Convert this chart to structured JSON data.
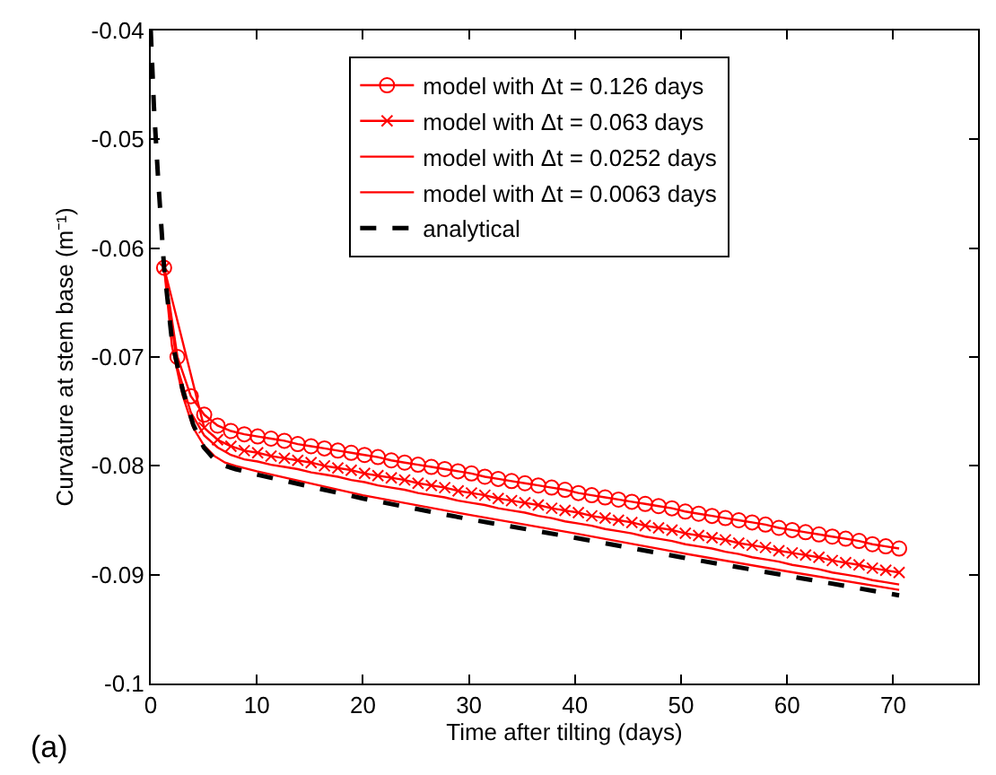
{
  "chart_data": {
    "type": "line",
    "xlabel": "Time after tilting (days)",
    "ylabel": "Curvature at stem base (m⁻¹)",
    "annotations": [
      "(a)"
    ],
    "x": [
      1.26,
      2.52,
      3.78,
      5.04,
      6.3,
      7.56,
      8.82,
      10.08,
      11.34,
      12.6,
      13.86,
      15.12,
      16.38,
      17.64,
      18.9,
      20.16,
      21.42,
      22.68,
      23.94,
      25.2,
      26.46,
      27.72,
      28.98,
      30.24,
      31.5,
      32.76,
      34.02,
      35.28,
      36.54,
      37.8,
      39.06,
      40.32,
      41.58,
      42.84,
      44.1,
      45.36,
      46.62,
      47.88,
      49.14,
      50.4,
      51.66,
      52.92,
      54.18,
      55.44,
      56.7,
      57.96,
      59.22,
      60.48,
      61.74,
      63,
      64.26,
      65.52,
      66.78,
      68.04,
      69.3,
      70.56
    ],
    "series": [
      {
        "name": "model with Δt = 0.126 days",
        "color": "#ff0000",
        "marker": "circle",
        "line_style": "solid",
        "values": [
          -0.0618,
          -0.07,
          -0.0736,
          -0.0753,
          -0.0763,
          -0.0768,
          -0.0771,
          -0.0773,
          -0.0775,
          -0.0777,
          -0.078,
          -0.0782,
          -0.0784,
          -0.0786,
          -0.0788,
          -0.079,
          -0.0792,
          -0.0795,
          -0.0797,
          -0.0799,
          -0.0801,
          -0.0803,
          -0.0805,
          -0.0807,
          -0.081,
          -0.0812,
          -0.0814,
          -0.0816,
          -0.0818,
          -0.082,
          -0.0822,
          -0.0825,
          -0.0827,
          -0.0829,
          -0.0831,
          -0.0833,
          -0.0835,
          -0.0837,
          -0.0839,
          -0.0842,
          -0.0844,
          -0.0846,
          -0.0848,
          -0.085,
          -0.0852,
          -0.0854,
          -0.0857,
          -0.0859,
          -0.0861,
          -0.0863,
          -0.0865,
          -0.0867,
          -0.0869,
          -0.0872,
          -0.0874,
          -0.0876
        ]
      },
      {
        "name": "model with Δt = 0.063 days",
        "color": "#ff0000",
        "marker": "cross",
        "line_style": "solid",
        "values": [
          -0.0618,
          null,
          null,
          -0.0765,
          -0.0776,
          -0.0782,
          -0.0786,
          -0.0788,
          -0.0791,
          -0.0793,
          -0.0795,
          -0.0797,
          -0.08,
          -0.0802,
          -0.0804,
          -0.0807,
          -0.0809,
          -0.0811,
          -0.0813,
          -0.0816,
          -0.0818,
          -0.082,
          -0.0823,
          -0.0825,
          -0.0827,
          -0.083,
          -0.0832,
          -0.0834,
          -0.0836,
          -0.0839,
          -0.0841,
          -0.0843,
          -0.0846,
          -0.0848,
          -0.085,
          -0.0852,
          -0.0855,
          -0.0857,
          -0.0859,
          -0.0862,
          -0.0864,
          -0.0866,
          -0.0868,
          -0.0871,
          -0.0873,
          -0.0875,
          -0.0878,
          -0.088,
          -0.0882,
          -0.0884,
          -0.0887,
          -0.0889,
          -0.0891,
          -0.0894,
          -0.0896,
          -0.0898
        ]
      },
      {
        "name": "model with Δt = 0.0252 days",
        "color": "#ff0000",
        "marker": "none",
        "line_style": "solid",
        "values": [
          -0.0618,
          -0.071,
          -0.0751,
          -0.0772,
          -0.0783,
          -0.079,
          -0.0794,
          -0.0796,
          -0.0799,
          -0.0801,
          -0.0803,
          -0.0806,
          -0.0808,
          -0.081,
          -0.0813,
          -0.0815,
          -0.0818,
          -0.082,
          -0.0822,
          -0.0825,
          -0.0827,
          -0.0829,
          -0.0832,
          -0.0834,
          -0.0836,
          -0.0839,
          -0.0841,
          -0.0843,
          -0.0846,
          -0.0848,
          -0.0851,
          -0.0853,
          -0.0855,
          -0.0858,
          -0.086,
          -0.0862,
          -0.0865,
          -0.0867,
          -0.0869,
          -0.0872,
          -0.0874,
          -0.0876,
          -0.0879,
          -0.0881,
          -0.0884,
          -0.0886,
          -0.0888,
          -0.0891,
          -0.0893,
          -0.0895,
          -0.0898,
          -0.09,
          -0.0902,
          -0.0905,
          -0.0907,
          -0.0909
        ]
      },
      {
        "name": "model with Δt = 0.0063 days",
        "color": "#ff0000",
        "marker": "none",
        "line_style": "solid",
        "x": [
          1.26,
          2,
          3,
          4,
          5,
          6,
          7,
          8,
          10,
          20,
          30,
          40,
          50,
          60,
          70.56
        ],
        "values": [
          -0.0618,
          -0.069,
          -0.0735,
          -0.0765,
          -0.0781,
          -0.0791,
          -0.0797,
          -0.08,
          -0.0805,
          -0.0827,
          -0.0845,
          -0.0862,
          -0.088,
          -0.0897,
          -0.0914
        ]
      },
      {
        "name": "analytical",
        "color": "#000000",
        "marker": "none",
        "line_style": "dashed",
        "x": [
          0,
          0.3,
          0.7,
          1.26,
          2,
          3,
          4,
          5,
          6,
          7,
          8,
          10,
          20,
          30,
          40,
          50,
          60,
          70.56
        ],
        "values": [
          -0.04,
          -0.047,
          -0.0537,
          -0.0618,
          -0.0685,
          -0.073,
          -0.0762,
          -0.0783,
          -0.0794,
          -0.08,
          -0.0803,
          -0.0808,
          -0.083,
          -0.0849,
          -0.0866,
          -0.0884,
          -0.0901,
          -0.0919
        ]
      }
    ],
    "xlim": [
      0,
      78
    ],
    "xticks": [
      0,
      10,
      20,
      30,
      40,
      50,
      60,
      70
    ],
    "ylim": [
      -0.1,
      -0.04
    ],
    "yticks": [
      -0.1,
      -0.09,
      -0.08,
      -0.07,
      -0.06,
      -0.05,
      -0.04
    ],
    "grid": false,
    "legend": "top"
  }
}
